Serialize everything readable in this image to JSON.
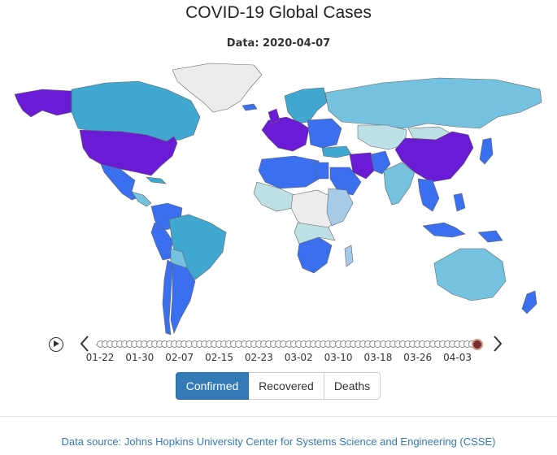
{
  "title": "COVID-19 Global Cases",
  "subtitle": "Data: 2020-04-07",
  "colors": {
    "very_high": "#6a1bd6",
    "high": "#3a6ff0",
    "mid": "#3fa7d0",
    "low": "#74c2df",
    "lower": "#a6cbe8",
    "lowest": "#bde0e6",
    "none": "#ececec",
    "current_dot": "#7a2e2e",
    "active_button": "#337ab7"
  },
  "timeline": {
    "play_icon": "play-icon",
    "prev_icon": "chevron-left-icon",
    "next_icon": "chevron-right-icon",
    "tick_labels": [
      "01-22",
      "01-30",
      "02-07",
      "02-15",
      "02-23",
      "03-02",
      "03-10",
      "03-18",
      "03-26",
      "04-03"
    ],
    "num_dates": 77,
    "current_index": 76
  },
  "buttons": {
    "confirmed": "Confirmed",
    "recovered": "Recovered",
    "deaths": "Deaths",
    "active": "confirmed"
  },
  "footer": "Data source: Johns Hopkins University Center for Systems Science and Engineering (CSSE)"
}
